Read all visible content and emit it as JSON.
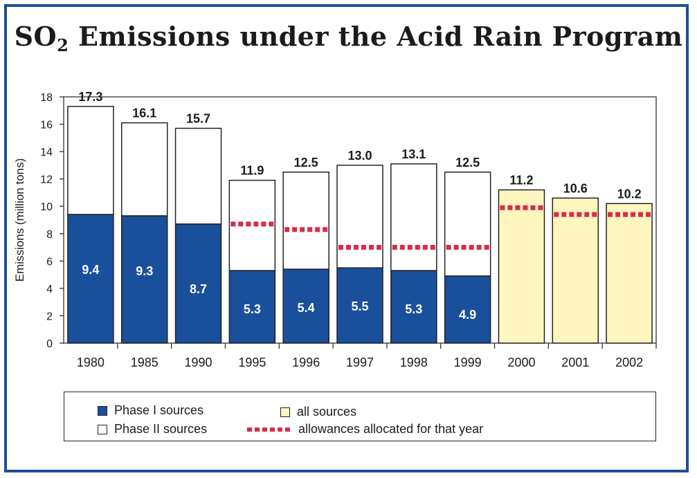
{
  "title_main": "SO",
  "title_sub": "2",
  "title_rest": " Emissions under the Acid Rain Program",
  "chart_data": {
    "type": "bar",
    "stacked": true,
    "categories": [
      "1980",
      "1985",
      "1990",
      "1995",
      "1996",
      "1997",
      "1998",
      "1999",
      "2000",
      "2001",
      "2002"
    ],
    "totals": [
      17.3,
      16.1,
      15.7,
      11.9,
      12.5,
      13.0,
      13.1,
      12.5,
      11.2,
      10.6,
      10.2
    ],
    "total_labels": [
      "17.3",
      "16.1",
      "15.7",
      "11.9",
      "12.5",
      "13.0",
      "13.1",
      "12.5",
      "11.2",
      "10.6",
      "10.2"
    ],
    "series": [
      {
        "name": "Phase I sources",
        "values": [
          9.4,
          9.3,
          8.7,
          5.3,
          5.4,
          5.5,
          5.3,
          4.9,
          null,
          null,
          null
        ],
        "labels": [
          "9.4",
          "9.3",
          "8.7",
          "5.3",
          "5.4",
          "5.5",
          "5.3",
          "4.9",
          "",
          "",
          ""
        ]
      },
      {
        "name": "Phase II sources",
        "values": [
          7.9,
          6.8,
          7.0,
          6.6,
          7.1,
          7.5,
          7.8,
          7.6,
          null,
          null,
          null
        ]
      },
      {
        "name": "all sources",
        "values": [
          null,
          null,
          null,
          null,
          null,
          null,
          null,
          null,
          11.2,
          10.6,
          10.2
        ]
      }
    ],
    "allowances": {
      "name": "allowances allocated for that year",
      "values": [
        null,
        null,
        null,
        8.7,
        8.3,
        7.0,
        7.0,
        7.0,
        9.9,
        9.4,
        9.4
      ]
    },
    "ylabel": "Emissions (million tons)",
    "ylim": [
      0,
      18
    ],
    "yticks": [
      "0",
      "2",
      "4",
      "6",
      "8",
      "10",
      "12",
      "14",
      "16",
      "18"
    ],
    "colors": {
      "phase1": "#1a4f9c",
      "phase2": "#ffffff",
      "all": "#fff6bf",
      "allowance": "#d62d4a",
      "border": "#1f4e96"
    },
    "grid": false,
    "legend_position": "bottom"
  },
  "legend": {
    "phase1": "Phase I sources",
    "phase2": "Phase II sources",
    "all": "all sources",
    "allowance": "allowances allocated for that year"
  }
}
